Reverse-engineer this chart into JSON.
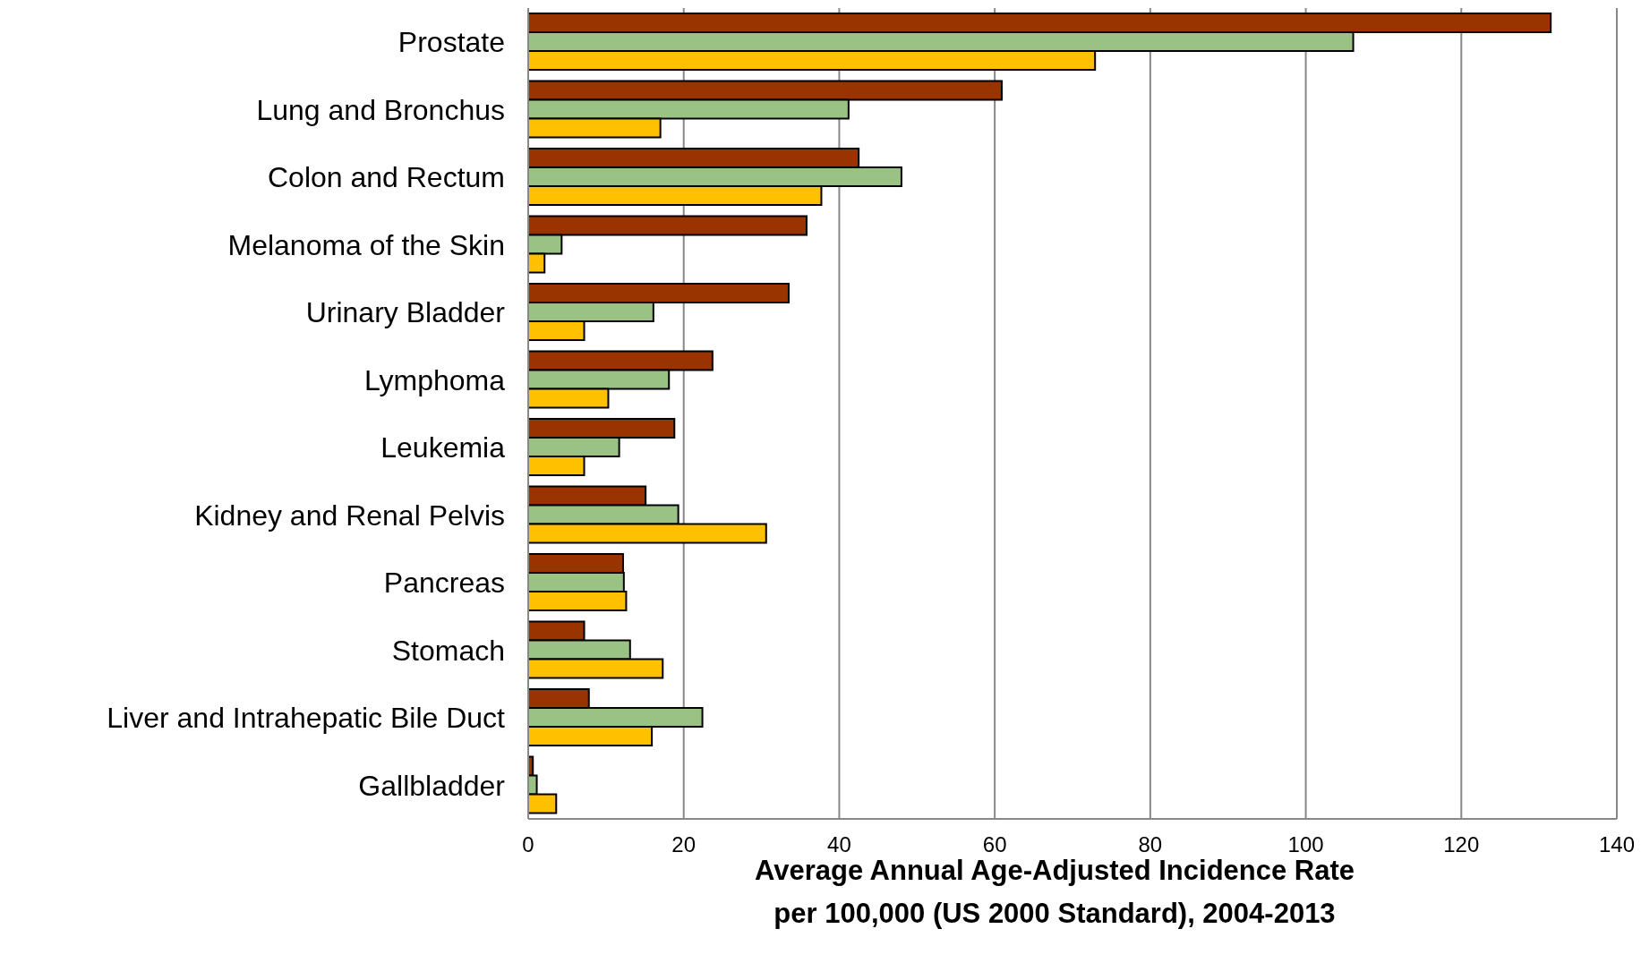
{
  "chart_data": {
    "type": "bar",
    "orientation": "horizontal",
    "xlabel": "Average Annual Age-Adjusted Incidence Rate per 100,000 (US 2000 Standard), 2004-2013",
    "categories": [
      "Prostate",
      "Lung and Bronchus",
      "Colon and Rectum",
      "Melanoma of the Skin",
      "Urinary Bladder",
      "Lymphoma",
      "Leukemia",
      "Kidney and Renal Pelvis",
      "Pancreas",
      "Stomach",
      "Liver and Intrahepatic Bile Duct",
      "Gallbladder"
    ],
    "series": [
      {
        "color": "#993300",
        "values": [
          131.5,
          60.9,
          42.5,
          35.8,
          33.5,
          23.7,
          18.8,
          15.1,
          12.2,
          7.2,
          7.8,
          0.6
        ]
      },
      {
        "color": "#9bc285",
        "values": [
          106.1,
          41.2,
          48.0,
          4.3,
          16.1,
          18.1,
          11.7,
          19.3,
          12.3,
          13.1,
          22.4,
          1.1
        ]
      },
      {
        "color": "#ffc000",
        "values": [
          72.9,
          17.0,
          37.7,
          2.1,
          7.2,
          10.3,
          7.2,
          30.6,
          12.6,
          17.3,
          15.9,
          3.6
        ]
      }
    ],
    "xlim": [
      0,
      140
    ],
    "xticks": [
      0,
      20,
      40,
      60,
      80,
      100,
      120,
      140
    ],
    "grid": "x",
    "legend": false
  }
}
